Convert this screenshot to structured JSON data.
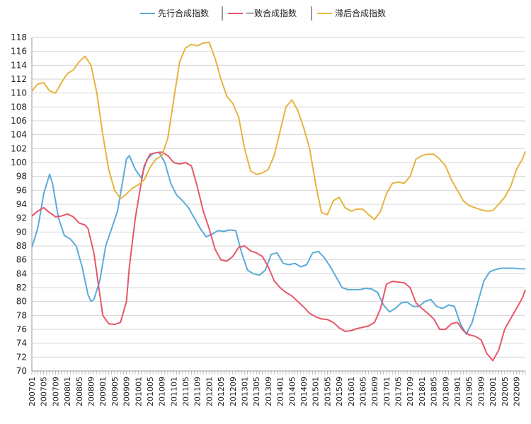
{
  "chart_data": {
    "type": "line",
    "title": "",
    "xlabel": "",
    "ylabel": "",
    "ylim": [
      70,
      118
    ],
    "yticks": [
      70,
      72,
      74,
      76,
      78,
      80,
      82,
      84,
      86,
      88,
      90,
      92,
      94,
      96,
      98,
      100,
      102,
      104,
      106,
      108,
      110,
      112,
      114,
      116,
      118
    ],
    "grid": true,
    "legend_position": "top-center",
    "x_tick_labels": [
      "200701",
      "200705",
      "200709",
      "200801",
      "200805",
      "200809",
      "200901",
      "200905",
      "200909",
      "201001",
      "201005",
      "201009",
      "201101",
      "201105",
      "201109",
      "201201",
      "201205",
      "201209",
      "201301",
      "201305",
      "201309",
      "201401",
      "201405",
      "201409",
      "201501",
      "201505",
      "201509",
      "201601",
      "201605",
      "201609",
      "201701",
      "201705",
      "201709",
      "201801",
      "201805",
      "201809",
      "201901",
      "201905",
      "201909",
      "202001",
      "202005",
      "202009"
    ],
    "x_start": "2007-01",
    "x_end": "2020-12",
    "series": [
      {
        "name": "先行合成指数",
        "color": "#5aabd9",
        "points": [
          [
            "2007-01",
            87.8
          ],
          [
            "2007-03",
            90.5
          ],
          [
            "2007-05",
            95.5
          ],
          [
            "2007-07",
            98.3
          ],
          [
            "2007-08",
            97.0
          ],
          [
            "2007-10",
            92.0
          ],
          [
            "2007-12",
            89.5
          ],
          [
            "2008-02",
            89.0
          ],
          [
            "2008-04",
            88.0
          ],
          [
            "2008-06",
            85.0
          ],
          [
            "2008-08",
            81.0
          ],
          [
            "2008-09",
            80.0
          ],
          [
            "2008-10",
            80.3
          ],
          [
            "2008-12",
            83.0
          ],
          [
            "2009-02",
            88.0
          ],
          [
            "2009-04",
            90.5
          ],
          [
            "2009-06",
            93.0
          ],
          [
            "2009-08",
            98.0
          ],
          [
            "2009-09",
            100.5
          ],
          [
            "2009-10",
            101.0
          ],
          [
            "2009-12",
            99.0
          ],
          [
            "2010-02",
            97.8
          ],
          [
            "2010-04",
            100.5
          ],
          [
            "2010-06",
            101.3
          ],
          [
            "2010-08",
            101.5
          ],
          [
            "2010-10",
            100.0
          ],
          [
            "2010-12",
            97.0
          ],
          [
            "2011-02",
            95.3
          ],
          [
            "2011-04",
            94.5
          ],
          [
            "2011-06",
            93.5
          ],
          [
            "2011-08",
            92.0
          ],
          [
            "2011-10",
            90.5
          ],
          [
            "2011-12",
            89.3
          ],
          [
            "2012-02",
            89.7
          ],
          [
            "2012-04",
            90.2
          ],
          [
            "2012-06",
            90.1
          ],
          [
            "2012-08",
            90.3
          ],
          [
            "2012-10",
            90.2
          ],
          [
            "2012-12",
            87.0
          ],
          [
            "2013-02",
            84.5
          ],
          [
            "2013-04",
            84.0
          ],
          [
            "2013-06",
            83.8
          ],
          [
            "2013-08",
            84.5
          ],
          [
            "2013-10",
            86.8
          ],
          [
            "2013-12",
            87.0
          ],
          [
            "2014-02",
            85.5
          ],
          [
            "2014-04",
            85.3
          ],
          [
            "2014-06",
            85.5
          ],
          [
            "2014-08",
            85.0
          ],
          [
            "2014-10",
            85.3
          ],
          [
            "2014-12",
            87.0
          ],
          [
            "2015-02",
            87.2
          ],
          [
            "2015-04",
            86.3
          ],
          [
            "2015-06",
            85.0
          ],
          [
            "2015-08",
            83.5
          ],
          [
            "2015-10",
            82.0
          ],
          [
            "2015-12",
            81.7
          ],
          [
            "2016-02",
            81.7
          ],
          [
            "2016-04",
            81.7
          ],
          [
            "2016-06",
            81.9
          ],
          [
            "2016-08",
            81.8
          ],
          [
            "2016-10",
            81.3
          ],
          [
            "2016-12",
            79.5
          ],
          [
            "2017-02",
            78.5
          ],
          [
            "2017-04",
            79.0
          ],
          [
            "2017-06",
            79.8
          ],
          [
            "2017-08",
            79.9
          ],
          [
            "2017-10",
            79.3
          ],
          [
            "2017-12",
            79.3
          ],
          [
            "2018-02",
            80.0
          ],
          [
            "2018-04",
            80.3
          ],
          [
            "2018-06",
            79.3
          ],
          [
            "2018-08",
            79.0
          ],
          [
            "2018-10",
            79.5
          ],
          [
            "2018-12",
            79.3
          ],
          [
            "2019-02",
            76.8
          ],
          [
            "2019-04",
            75.3
          ],
          [
            "2019-06",
            77.0
          ],
          [
            "2019-08",
            80.0
          ],
          [
            "2019-10",
            83.0
          ],
          [
            "2019-12",
            84.3
          ],
          [
            "2020-02",
            84.6
          ],
          [
            "2020-04",
            84.8
          ],
          [
            "2020-06",
            84.8
          ],
          [
            "2020-08",
            84.8
          ],
          [
            "2020-10",
            84.7
          ],
          [
            "2020-12",
            84.7
          ]
        ]
      },
      {
        "name": "一致合成指数",
        "color": "#e8566a",
        "points": [
          [
            "2007-01",
            92.3
          ],
          [
            "2007-03",
            93.0
          ],
          [
            "2007-05",
            93.5
          ],
          [
            "2007-07",
            92.8
          ],
          [
            "2007-09",
            92.2
          ],
          [
            "2007-11",
            92.3
          ],
          [
            "2008-01",
            92.6
          ],
          [
            "2008-03",
            92.2
          ],
          [
            "2008-05",
            91.3
          ],
          [
            "2008-07",
            91.0
          ],
          [
            "2008-08",
            90.5
          ],
          [
            "2008-10",
            87.0
          ],
          [
            "2008-12",
            81.0
          ],
          [
            "2009-01",
            78.0
          ],
          [
            "2009-03",
            76.8
          ],
          [
            "2009-05",
            76.7
          ],
          [
            "2009-07",
            77.0
          ],
          [
            "2009-09",
            80.0
          ],
          [
            "2009-10",
            85.0
          ],
          [
            "2009-12",
            92.0
          ],
          [
            "2010-02",
            97.0
          ],
          [
            "2010-03",
            99.5
          ],
          [
            "2010-05",
            101.2
          ],
          [
            "2010-07",
            101.4
          ],
          [
            "2010-09",
            101.5
          ],
          [
            "2010-11",
            101.0
          ],
          [
            "2011-01",
            100.0
          ],
          [
            "2011-03",
            99.8
          ],
          [
            "2011-05",
            100.0
          ],
          [
            "2011-07",
            99.5
          ],
          [
            "2011-09",
            96.5
          ],
          [
            "2011-11",
            93.0
          ],
          [
            "2012-01",
            90.5
          ],
          [
            "2012-03",
            87.5
          ],
          [
            "2012-05",
            86.0
          ],
          [
            "2012-07",
            85.8
          ],
          [
            "2012-09",
            86.5
          ],
          [
            "2012-11",
            87.8
          ],
          [
            "2013-01",
            88.0
          ],
          [
            "2013-03",
            87.3
          ],
          [
            "2013-05",
            87.0
          ],
          [
            "2013-07",
            86.5
          ],
          [
            "2013-09",
            85.0
          ],
          [
            "2013-11",
            83.0
          ],
          [
            "2014-01",
            82.0
          ],
          [
            "2014-03",
            81.3
          ],
          [
            "2014-05",
            80.8
          ],
          [
            "2014-07",
            80.0
          ],
          [
            "2014-09",
            79.2
          ],
          [
            "2014-11",
            78.3
          ],
          [
            "2015-01",
            77.8
          ],
          [
            "2015-03",
            77.5
          ],
          [
            "2015-05",
            77.4
          ],
          [
            "2015-07",
            77.0
          ],
          [
            "2015-09",
            76.2
          ],
          [
            "2015-11",
            75.7
          ],
          [
            "2016-01",
            75.8
          ],
          [
            "2016-03",
            76.1
          ],
          [
            "2016-05",
            76.3
          ],
          [
            "2016-07",
            76.5
          ],
          [
            "2016-09",
            77.0
          ],
          [
            "2016-11",
            79.0
          ],
          [
            "2017-01",
            82.5
          ],
          [
            "2017-03",
            82.9
          ],
          [
            "2017-05",
            82.8
          ],
          [
            "2017-07",
            82.7
          ],
          [
            "2017-09",
            82.0
          ],
          [
            "2017-11",
            79.8
          ],
          [
            "2018-01",
            79.0
          ],
          [
            "2018-03",
            78.3
          ],
          [
            "2018-05",
            77.5
          ],
          [
            "2018-07",
            76.0
          ],
          [
            "2018-09",
            76.0
          ],
          [
            "2018-11",
            76.8
          ],
          [
            "2019-01",
            77.0
          ],
          [
            "2019-03",
            75.8
          ],
          [
            "2019-05",
            75.2
          ],
          [
            "2019-07",
            75.0
          ],
          [
            "2019-09",
            74.5
          ],
          [
            "2019-11",
            72.5
          ],
          [
            "2020-01",
            71.5
          ],
          [
            "2020-03",
            73.0
          ],
          [
            "2020-05",
            76.0
          ],
          [
            "2020-07",
            77.5
          ],
          [
            "2020-09",
            79.0
          ],
          [
            "2020-11",
            80.5
          ],
          [
            "2020-12",
            81.7
          ]
        ]
      },
      {
        "name": "滞后合成指数",
        "color": "#e7b33f",
        "points": [
          [
            "2007-01",
            110.3
          ],
          [
            "2007-03",
            111.3
          ],
          [
            "2007-05",
            111.5
          ],
          [
            "2007-07",
            110.3
          ],
          [
            "2007-09",
            110.0
          ],
          [
            "2007-11",
            111.5
          ],
          [
            "2008-01",
            112.8
          ],
          [
            "2008-03",
            113.3
          ],
          [
            "2008-05",
            114.5
          ],
          [
            "2008-07",
            115.3
          ],
          [
            "2008-09",
            114.0
          ],
          [
            "2008-11",
            110.0
          ],
          [
            "2009-01",
            104.0
          ],
          [
            "2009-03",
            99.0
          ],
          [
            "2009-05",
            96.0
          ],
          [
            "2009-07",
            94.8
          ],
          [
            "2009-09",
            95.5
          ],
          [
            "2009-11",
            96.3
          ],
          [
            "2010-01",
            96.8
          ],
          [
            "2010-03",
            97.5
          ],
          [
            "2010-05",
            99.3
          ],
          [
            "2010-07",
            100.5
          ],
          [
            "2010-09",
            101.0
          ],
          [
            "2010-11",
            103.5
          ],
          [
            "2011-01",
            109.0
          ],
          [
            "2011-03",
            114.5
          ],
          [
            "2011-05",
            116.5
          ],
          [
            "2011-07",
            117.0
          ],
          [
            "2011-09",
            116.8
          ],
          [
            "2011-11",
            117.2
          ],
          [
            "2012-01",
            117.3
          ],
          [
            "2012-03",
            115.0
          ],
          [
            "2012-05",
            112.0
          ],
          [
            "2012-07",
            109.5
          ],
          [
            "2012-09",
            108.5
          ],
          [
            "2012-11",
            106.5
          ],
          [
            "2013-01",
            102.0
          ],
          [
            "2013-03",
            98.8
          ],
          [
            "2013-05",
            98.3
          ],
          [
            "2013-07",
            98.5
          ],
          [
            "2013-09",
            99.0
          ],
          [
            "2013-11",
            101.0
          ],
          [
            "2014-01",
            104.5
          ],
          [
            "2014-03",
            108.0
          ],
          [
            "2014-05",
            109.0
          ],
          [
            "2014-07",
            107.5
          ],
          [
            "2014-09",
            105.0
          ],
          [
            "2014-11",
            102.0
          ],
          [
            "2015-01",
            97.0
          ],
          [
            "2015-03",
            92.8
          ],
          [
            "2015-05",
            92.5
          ],
          [
            "2015-07",
            94.5
          ],
          [
            "2015-09",
            95.0
          ],
          [
            "2015-11",
            93.5
          ],
          [
            "2016-01",
            93.0
          ],
          [
            "2016-03",
            93.3
          ],
          [
            "2016-05",
            93.3
          ],
          [
            "2016-07",
            92.5
          ],
          [
            "2016-09",
            91.8
          ],
          [
            "2016-11",
            93.0
          ],
          [
            "2017-01",
            95.5
          ],
          [
            "2017-03",
            97.0
          ],
          [
            "2017-05",
            97.2
          ],
          [
            "2017-07",
            97.0
          ],
          [
            "2017-09",
            98.0
          ],
          [
            "2017-11",
            100.5
          ],
          [
            "2018-01",
            101.0
          ],
          [
            "2018-03",
            101.2
          ],
          [
            "2018-05",
            101.2
          ],
          [
            "2018-07",
            100.5
          ],
          [
            "2018-09",
            99.5
          ],
          [
            "2018-11",
            97.5
          ],
          [
            "2019-01",
            96.0
          ],
          [
            "2019-03",
            94.5
          ],
          [
            "2019-05",
            93.8
          ],
          [
            "2019-07",
            93.5
          ],
          [
            "2019-09",
            93.2
          ],
          [
            "2019-11",
            93.0
          ],
          [
            "2020-01",
            93.1
          ],
          [
            "2020-03",
            94.0
          ],
          [
            "2020-05",
            95.0
          ],
          [
            "2020-07",
            96.5
          ],
          [
            "2020-09",
            99.0
          ],
          [
            "2020-11",
            100.5
          ],
          [
            "2020-12",
            101.6
          ]
        ]
      }
    ]
  }
}
